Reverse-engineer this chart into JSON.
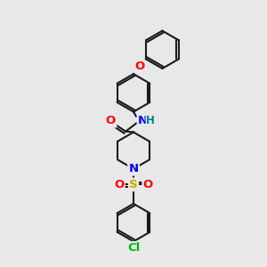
{
  "bg_color": "#e8e8e8",
  "bond_color": "#1a1a1a",
  "bond_width": 1.5,
  "atom_colors": {
    "O": "#ff0000",
    "N": "#0000ff",
    "S": "#ccaa00",
    "Cl": "#00bb00",
    "C": "#1a1a1a",
    "H": "#008080"
  },
  "font_size": 8.5,
  "fig_size": [
    3.0,
    3.0
  ],
  "dpi": 100
}
